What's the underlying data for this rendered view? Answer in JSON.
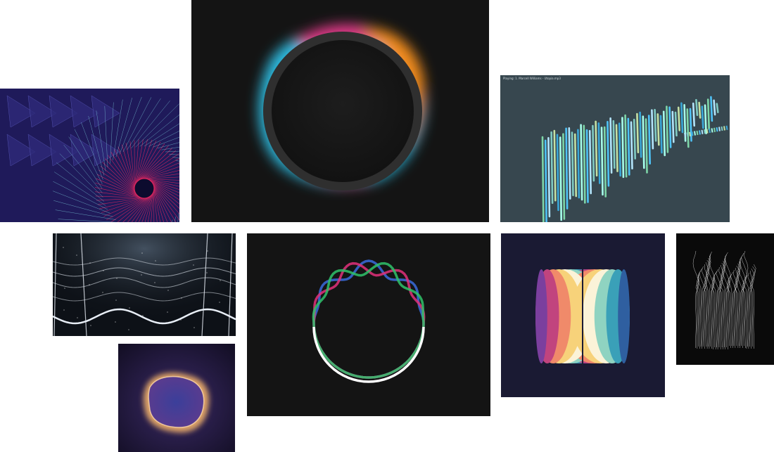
{
  "gallery": {
    "tiles": [
      {
        "id": "purple-spiral",
        "background": "#1f1a5a",
        "accent": "#e3265f"
      },
      {
        "id": "blurred-ring",
        "background": "#141414",
        "accent": "#2b2b2b"
      },
      {
        "id": "bar-visualizer",
        "background": "#37474f",
        "caption": "Playing: 1. Marcell Williams - Utopia.mp3"
      },
      {
        "id": "wave-lines",
        "background": "#0d1117",
        "accent": "#e8eef6"
      },
      {
        "id": "rgb-wave-ring",
        "background": "#141414",
        "colors": [
          "#3a6bdc",
          "#e2307a",
          "#2fc26a",
          "#ffffff"
        ]
      },
      {
        "id": "striped-sphere",
        "background": "#1a1a33"
      },
      {
        "id": "hairlines",
        "background": "#0a0a0a"
      },
      {
        "id": "glowing-blob",
        "background": "#211a3d",
        "accent": "#f3b26a"
      }
    ]
  }
}
